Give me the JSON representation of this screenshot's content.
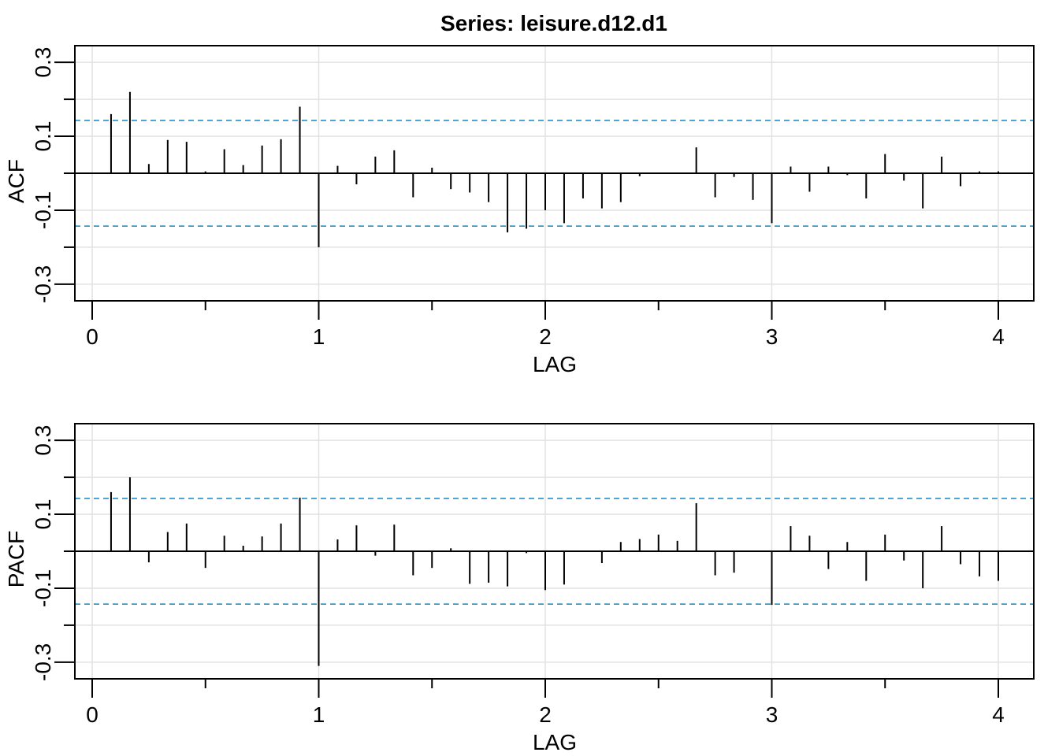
{
  "title": "Series:  leisure.d12.d1",
  "chart_data": [
    {
      "type": "bar",
      "name": "ACF",
      "ylabel": "ACF",
      "xlabel": "LAG",
      "xlim": [
        0,
        4.15
      ],
      "ylim": [
        -0.345,
        0.345
      ],
      "x_ticks": [
        0,
        1,
        2,
        3,
        4
      ],
      "x_tick_labels": [
        "0",
        "1",
        "2",
        "3",
        "4"
      ],
      "y_ticks": [
        -0.3,
        -0.1,
        0.1,
        0.3
      ],
      "y_tick_labels": [
        "-0.3",
        "-0.1",
        "0.1",
        "0.3"
      ],
      "grid": true,
      "confidence_bound": 0.143,
      "confidence_color": "#3399CC",
      "lags": [
        0.0833,
        0.1667,
        0.25,
        0.3333,
        0.4167,
        0.5,
        0.5833,
        0.6667,
        0.75,
        0.8333,
        0.9167,
        1.0,
        1.0833,
        1.1667,
        1.25,
        1.3333,
        1.4167,
        1.5,
        1.5833,
        1.6667,
        1.75,
        1.8333,
        1.9167,
        2.0,
        2.0833,
        2.1667,
        2.25,
        2.3333,
        2.4167,
        2.5,
        2.5833,
        2.6667,
        2.75,
        2.8333,
        2.9167,
        3.0,
        3.0833,
        3.1667,
        3.25,
        3.3333,
        3.4167,
        3.5,
        3.5833,
        3.6667,
        3.75,
        3.8333,
        3.9167,
        4.0
      ],
      "values": [
        0.16,
        0.22,
        0.025,
        0.09,
        0.085,
        0.005,
        0.065,
        0.022,
        0.075,
        0.092,
        0.18,
        -0.2,
        0.02,
        -0.03,
        0.045,
        0.062,
        -0.065,
        0.015,
        -0.043,
        -0.052,
        -0.078,
        -0.16,
        -0.15,
        -0.1,
        -0.135,
        -0.068,
        -0.095,
        -0.078,
        -0.008,
        0.0,
        0.0,
        0.07,
        -0.065,
        -0.01,
        -0.072,
        -0.135,
        0.018,
        -0.05,
        0.018,
        -0.005,
        -0.068,
        0.052,
        -0.02,
        -0.095,
        0.045,
        -0.035,
        0.005,
        0.005
      ]
    },
    {
      "type": "bar",
      "name": "PACF",
      "ylabel": "PACF",
      "xlabel": "LAG",
      "xlim": [
        0,
        4.15
      ],
      "ylim": [
        -0.345,
        0.345
      ],
      "x_ticks": [
        0,
        1,
        2,
        3,
        4
      ],
      "x_tick_labels": [
        "0",
        "1",
        "2",
        "3",
        "4"
      ],
      "y_ticks": [
        -0.3,
        -0.1,
        0.1,
        0.3
      ],
      "y_tick_labels": [
        "-0.3",
        "-0.1",
        "0.1",
        "0.3"
      ],
      "grid": true,
      "confidence_bound": 0.143,
      "confidence_color": "#3399CC",
      "lags": [
        0.0833,
        0.1667,
        0.25,
        0.3333,
        0.4167,
        0.5,
        0.5833,
        0.6667,
        0.75,
        0.8333,
        0.9167,
        1.0,
        1.0833,
        1.1667,
        1.25,
        1.3333,
        1.4167,
        1.5,
        1.5833,
        1.6667,
        1.75,
        1.8333,
        1.9167,
        2.0,
        2.0833,
        2.1667,
        2.25,
        2.3333,
        2.4167,
        2.5,
        2.5833,
        2.6667,
        2.75,
        2.8333,
        2.9167,
        3.0,
        3.0833,
        3.1667,
        3.25,
        3.3333,
        3.4167,
        3.5,
        3.5833,
        3.6667,
        3.75,
        3.8333,
        3.9167,
        4.0
      ],
      "values": [
        0.16,
        0.2,
        -0.03,
        0.052,
        0.075,
        -0.045,
        0.042,
        0.015,
        0.04,
        0.075,
        0.145,
        -0.31,
        0.032,
        0.07,
        -0.012,
        0.072,
        -0.065,
        -0.045,
        0.008,
        -0.088,
        -0.085,
        -0.095,
        -0.005,
        -0.105,
        -0.09,
        0.002,
        -0.032,
        0.025,
        0.033,
        0.045,
        0.028,
        0.13,
        -0.065,
        -0.058,
        0.0,
        -0.145,
        0.068,
        0.042,
        -0.048,
        0.025,
        -0.08,
        0.045,
        -0.025,
        -0.1,
        0.068,
        -0.035,
        -0.068,
        -0.08
      ]
    }
  ]
}
